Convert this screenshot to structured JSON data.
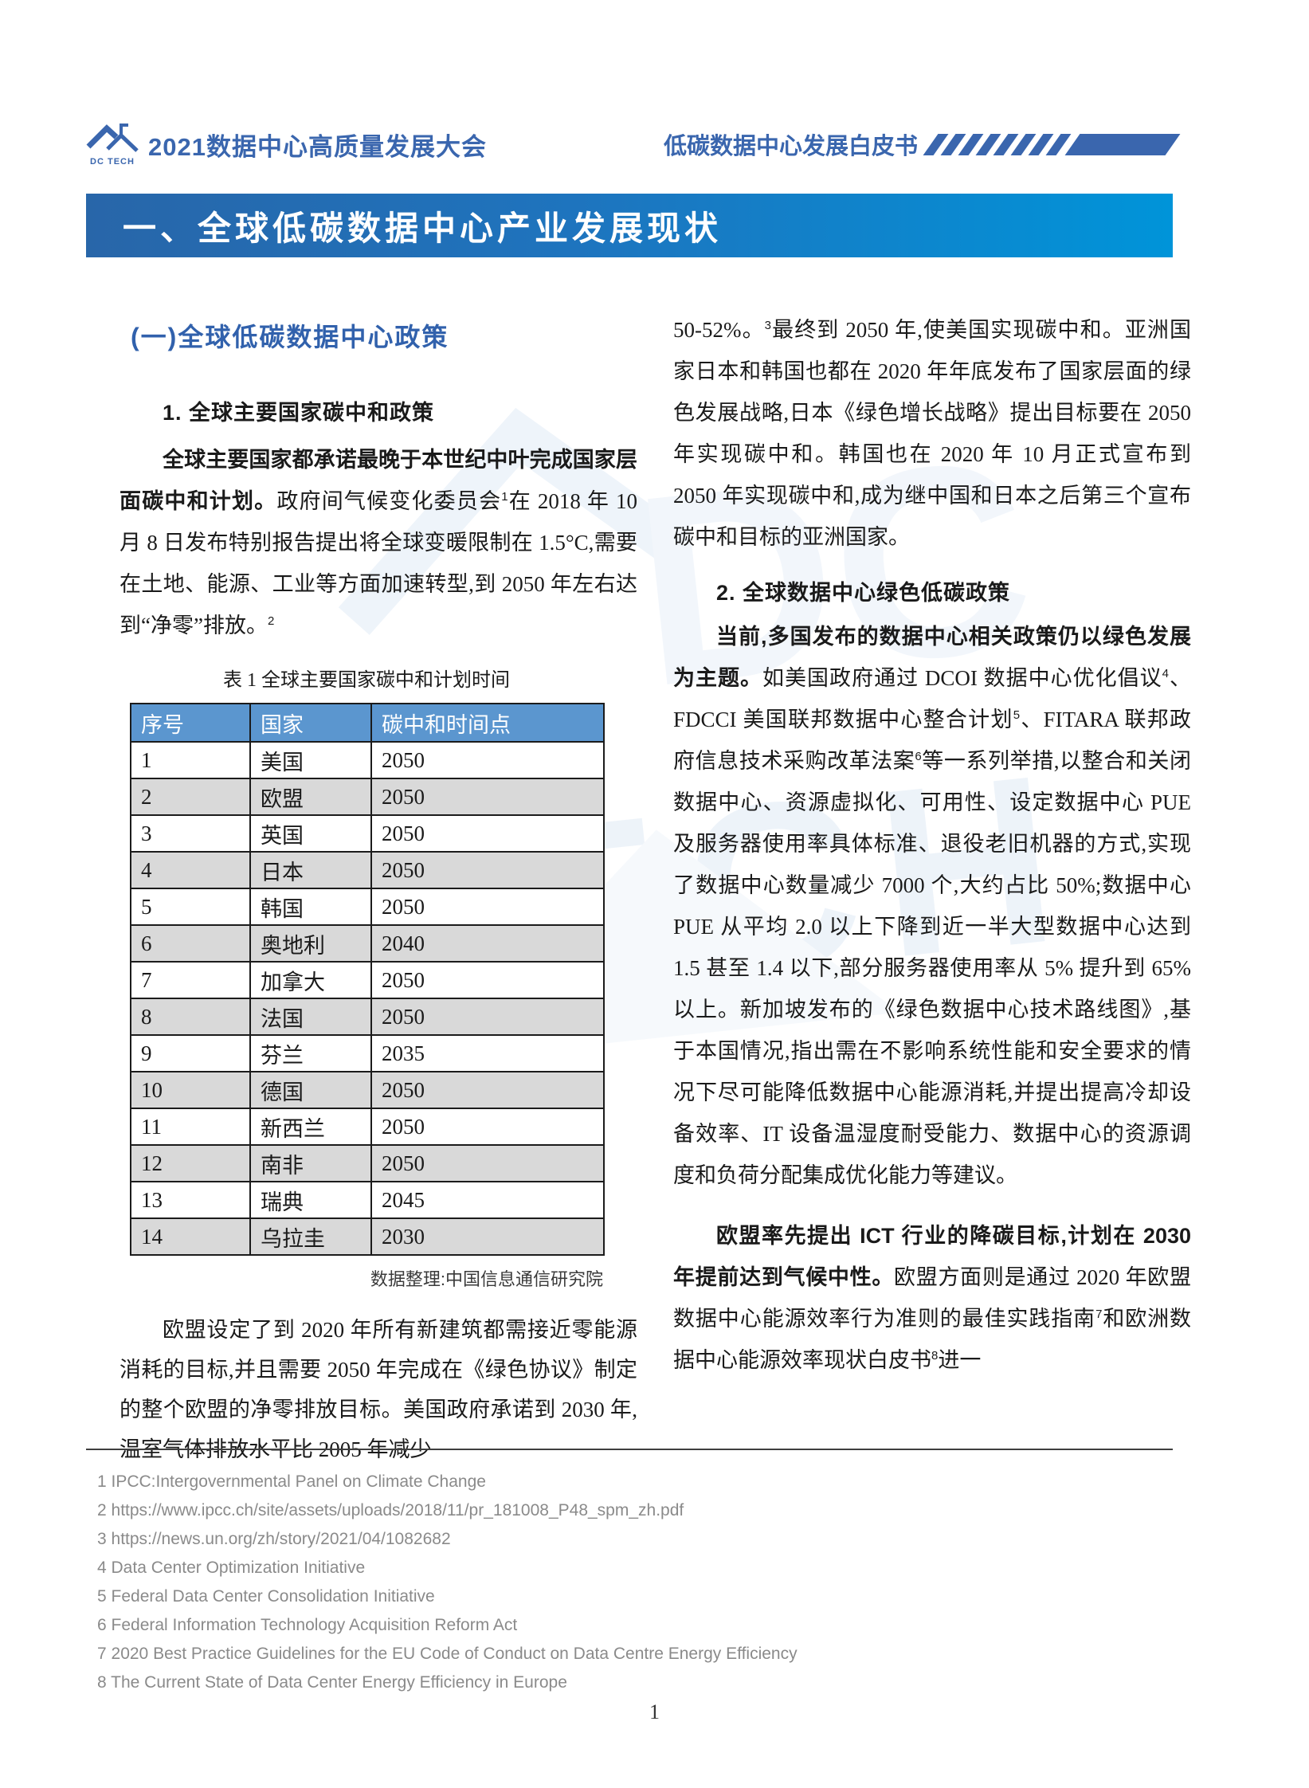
{
  "header": {
    "logo_label": "DC TECH",
    "conference_title": "2021数据中心高质量发展大会",
    "whitepaper_title": "低碳数据中心发展白皮书"
  },
  "banner": {
    "title": "一、全球低碳数据中心产业发展现状"
  },
  "left_column": {
    "section_heading": "(一)全球低碳数据中心政策",
    "sub_heading": "1. 全球主要国家碳中和政策",
    "paragraph1": [
      {
        "t": "全球主要国家都承诺最晚于本世纪中叶完成国家层面碳中和计划。",
        "b": true
      },
      {
        "t": "政府间气候变化委员会"
      },
      {
        "t": "1",
        "sup": true
      },
      {
        "t": "在 2018 年 10 月 8 日发布特别报告提出将全球变暖限制在 1.5°C,需要在土地、能源、工业等方面加速转型,到 2050 年左右达到“净零”排放。"
      },
      {
        "t": "2",
        "sup": true
      }
    ],
    "table": {
      "caption": "表 1 全球主要国家碳中和计划时间",
      "headers": [
        "序号",
        "国家",
        "碳中和时间点"
      ],
      "rows": [
        [
          "1",
          "美国",
          "2050"
        ],
        [
          "2",
          "欧盟",
          "2050"
        ],
        [
          "3",
          "英国",
          "2050"
        ],
        [
          "4",
          "日本",
          "2050"
        ],
        [
          "5",
          "韩国",
          "2050"
        ],
        [
          "6",
          "奥地利",
          "2040"
        ],
        [
          "7",
          "加拿大",
          "2050"
        ],
        [
          "8",
          "法国",
          "2050"
        ],
        [
          "9",
          "芬兰",
          "2035"
        ],
        [
          "10",
          "德国",
          "2050"
        ],
        [
          "11",
          "新西兰",
          "2050"
        ],
        [
          "12",
          "南非",
          "2050"
        ],
        [
          "13",
          "瑞典",
          "2045"
        ],
        [
          "14",
          "乌拉圭",
          "2030"
        ]
      ],
      "source_note": "数据整理:中国信息通信研究院"
    },
    "paragraph2": [
      {
        "t": "欧盟设定了到 2020 年所有新建筑都需接近零能源消耗的目标,并且需要 2050 年完成在《绿色协议》制定的整个欧盟的净零排放目标。美国政府承诺到 2030 年,温室气体排放水平比 2005 年减少"
      }
    ]
  },
  "right_column": {
    "paragraph1": [
      {
        "t": "50-52%。"
      },
      {
        "t": "3",
        "sup": true
      },
      {
        "t": "最终到 2050 年,使美国实现碳中和。亚洲国家日本和韩国也都在 2020 年年底发布了国家层面的绿色发展战略,日本《绿色增长战略》提出目标要在 2050 年实现碳中和。韩国也在 2020 年 10 月正式宣布到 2050 年实现碳中和,成为继中国和日本之后第三个宣布碳中和目标的亚洲国家。"
      }
    ],
    "sub_heading": "2. 全球数据中心绿色低碳政策",
    "paragraph2": [
      {
        "t": "当前,多国发布的数据中心相关政策仍以绿色发展为主题。",
        "b": true
      },
      {
        "t": "如美国政府通过 DCOI 数据中心优化倡议"
      },
      {
        "t": "4",
        "sup": true
      },
      {
        "t": "、FDCCI 美国联邦数据中心整合计划"
      },
      {
        "t": "5",
        "sup": true
      },
      {
        "t": "、FITARA 联邦政府信息技术采购改革法案"
      },
      {
        "t": "6",
        "sup": true
      },
      {
        "t": "等一系列举措,以整合和关闭数据中心、资源虚拟化、可用性、设定数据中心 PUE 及服务器使用率具体标准、退役老旧机器的方式,实现了数据中心数量减少 7000 个,大约占比 50%;数据中心 PUE 从平均 2.0 以上下降到近一半大型数据中心达到 1.5 甚至 1.4 以下,部分服务器使用率从 5% 提升到 65% 以上。新加坡发布的《绿色数据中心技术路线图》,基于本国情况,指出需在不影响系统性能和安全要求的情况下尽可能降低数据中心能源消耗,并提出提高冷却设备效率、IT 设备温湿度耐受能力、数据中心的资源调度和负荷分配集成优化能力等建议。"
      }
    ],
    "paragraph3": [
      {
        "t": "欧盟率先提出 ICT 行业的降碳目标,计划在 2030 年提前达到气候中性。",
        "b": true
      },
      {
        "t": "欧盟方面则是通过 2020 年欧盟数据中心能源效率行为准则的最佳实践指南"
      },
      {
        "t": "7",
        "sup": true
      },
      {
        "t": "和欧洲数据中心能源效率现状白皮书"
      },
      {
        "t": "8",
        "sup": true
      },
      {
        "t": "进一"
      }
    ]
  },
  "footnotes": [
    "1 IPCC:Intergovernmental Panel on Climate Change",
    "2 https://www.ipcc.ch/site/assets/uploads/2018/11/pr_181008_P48_spm_zh.pdf",
    "3 https://news.un.org/zh/story/2021/04/1082682",
    "4 Data Center Optimization Initiative",
    "5 Federal Data Center Consolidation Initiative",
    "6 Federal Information Technology Acquisition Reform Act",
    "7 2020 Best Practice Guidelines for the EU Code of Conduct on Data Centre Energy Efficiency",
    "8 The Current State of Data Center Energy Efficiency in Europe"
  ],
  "page_number": "1",
  "icons": {
    "logo": "dc-tech-logo-icon",
    "header_decoration": "slash-decoration"
  },
  "colors": {
    "accent_blue": "#3A66AE",
    "banner_gradient_start": "#2866A9",
    "banner_gradient_end": "#0094D9",
    "heading_blue": "#3161AC",
    "table_header_bg": "#5B96CF",
    "table_alt_row": "#D9D9D9",
    "footnote_gray": "#8A8A8A"
  }
}
